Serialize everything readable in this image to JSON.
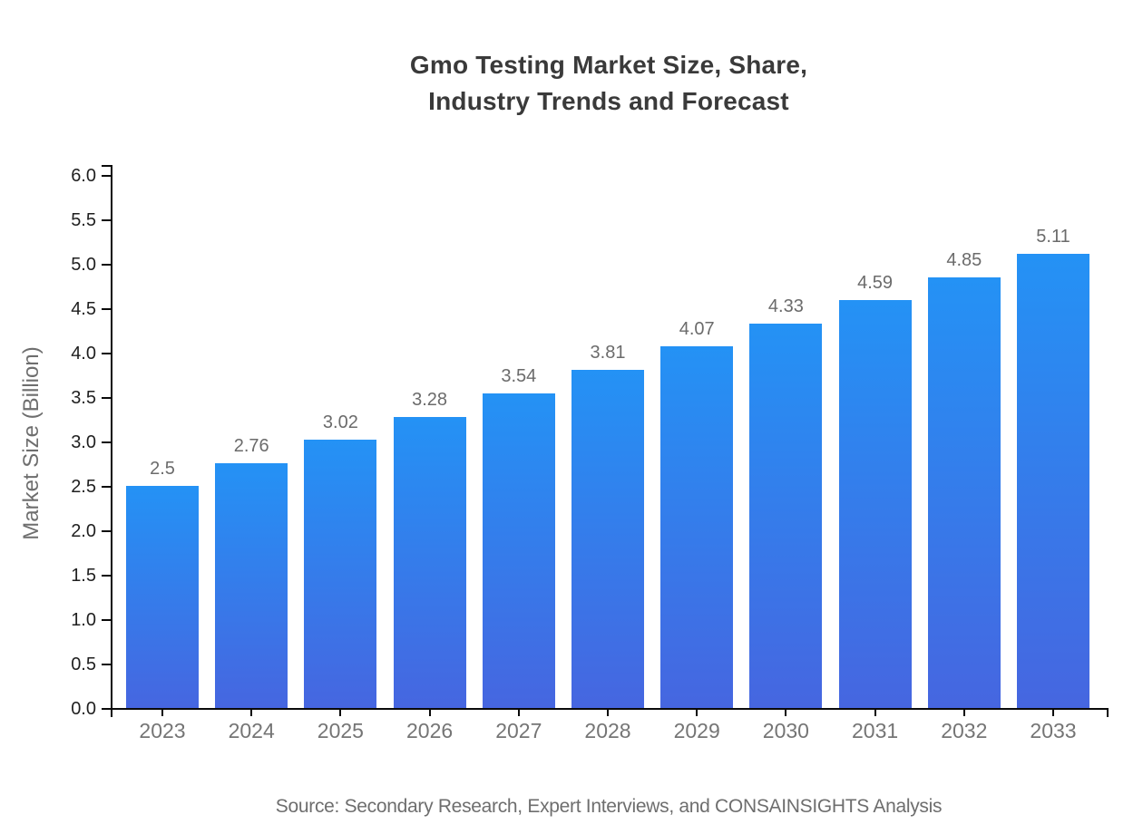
{
  "chart_data": {
    "type": "bar",
    "title": "Gmo Testing Market Size, Share, Industry Trends and Forecast",
    "title_lines": [
      "Gmo Testing Market Size, Share,",
      "Industry Trends and Forecast"
    ],
    "categories": [
      "2023",
      "2024",
      "2025",
      "2026",
      "2027",
      "2028",
      "2029",
      "2030",
      "2031",
      "2032",
      "2033"
    ],
    "values": [
      2.5,
      2.76,
      3.02,
      3.28,
      3.54,
      3.81,
      4.07,
      4.33,
      4.59,
      4.85,
      5.11
    ],
    "value_labels": [
      "2.5",
      "2.76",
      "3.02",
      "3.28",
      "3.54",
      "3.81",
      "4.07",
      "4.33",
      "4.59",
      "4.85",
      "5.11"
    ],
    "xlabel": "",
    "ylabel": "Market Size (Billion)",
    "ylim": [
      0,
      6
    ],
    "ytick_step": 0.5,
    "grid": false,
    "legend": null,
    "source_note": "Source: Secondary Research, Expert Interviews, and CONSAINSIGHTS Analysis",
    "colors": {
      "background": "#ffffff",
      "bar_gradient_top": "#2492f5",
      "bar_gradient_bottom": "#4666e0",
      "axis": "#0a0a0a",
      "y_tick_label": "#1f1f1f",
      "x_tick_label": "#757575",
      "value_label": "#6b6b6b",
      "title": "#3a3a3a",
      "muted_text": "#6e6e6e"
    }
  }
}
